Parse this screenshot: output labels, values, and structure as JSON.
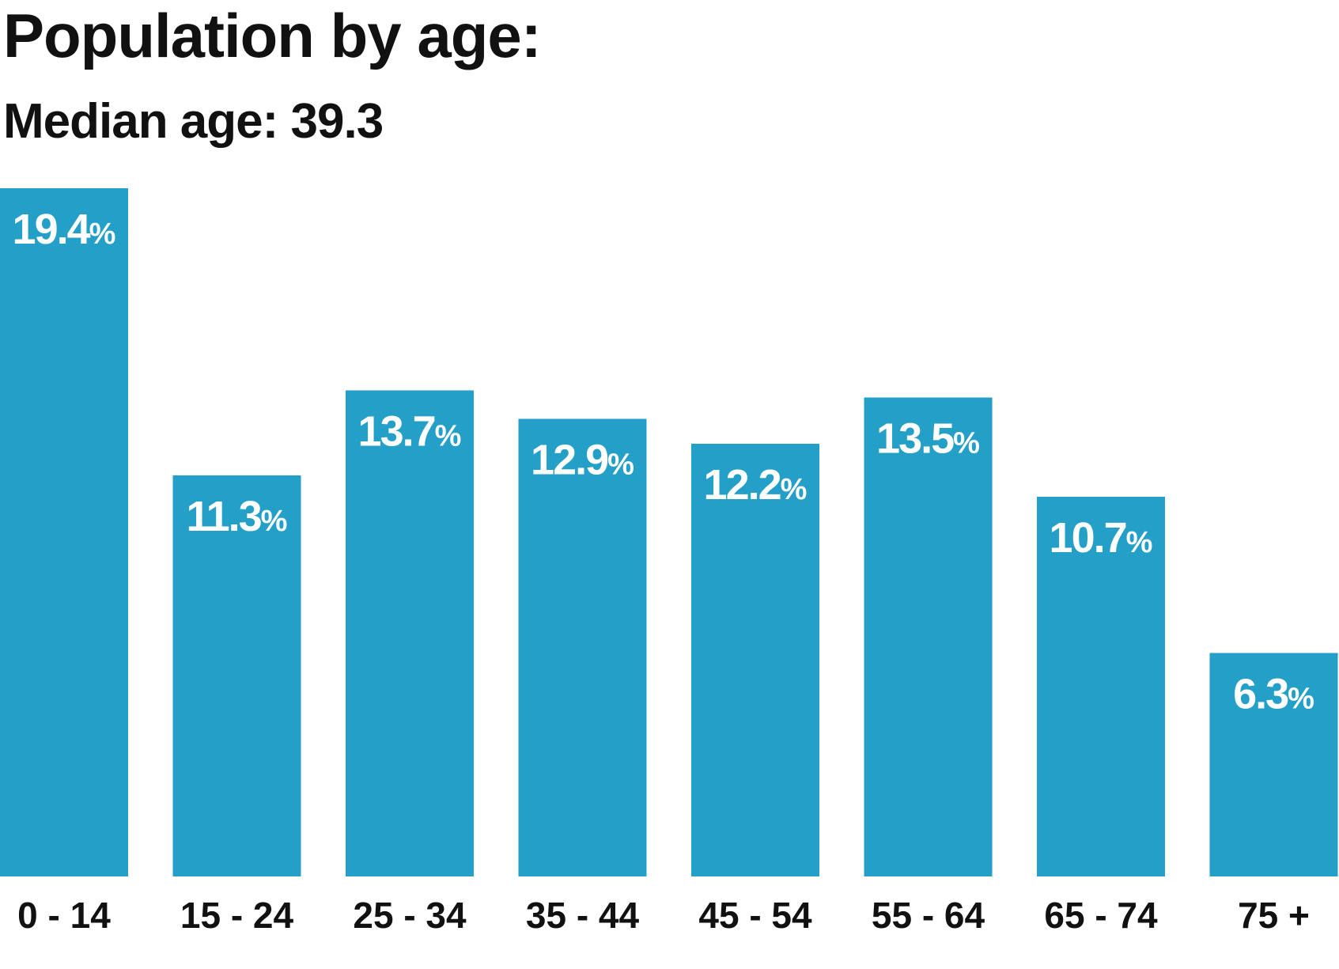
{
  "chart_data": {
    "type": "bar",
    "title": "Population by age:",
    "subtitle": "Median age: 39.3",
    "categories": [
      "0 - 14",
      "15 - 24",
      "25 - 34",
      "35 - 44",
      "45 - 54",
      "55 - 64",
      "65 - 74",
      "75 +"
    ],
    "values": [
      19.4,
      11.3,
      13.7,
      12.9,
      12.2,
      13.5,
      10.7,
      6.3
    ],
    "value_labels": [
      "19.4",
      "11.3",
      "13.7",
      "12.9",
      "12.2",
      "13.5",
      "10.7",
      "6.3"
    ],
    "value_suffix": "%",
    "xlabel": "",
    "ylabel": "",
    "ylim": [
      0,
      19.4
    ],
    "grid": false,
    "legend": "none",
    "bar_color": "#249fc8",
    "label_color": "#ffffff"
  }
}
